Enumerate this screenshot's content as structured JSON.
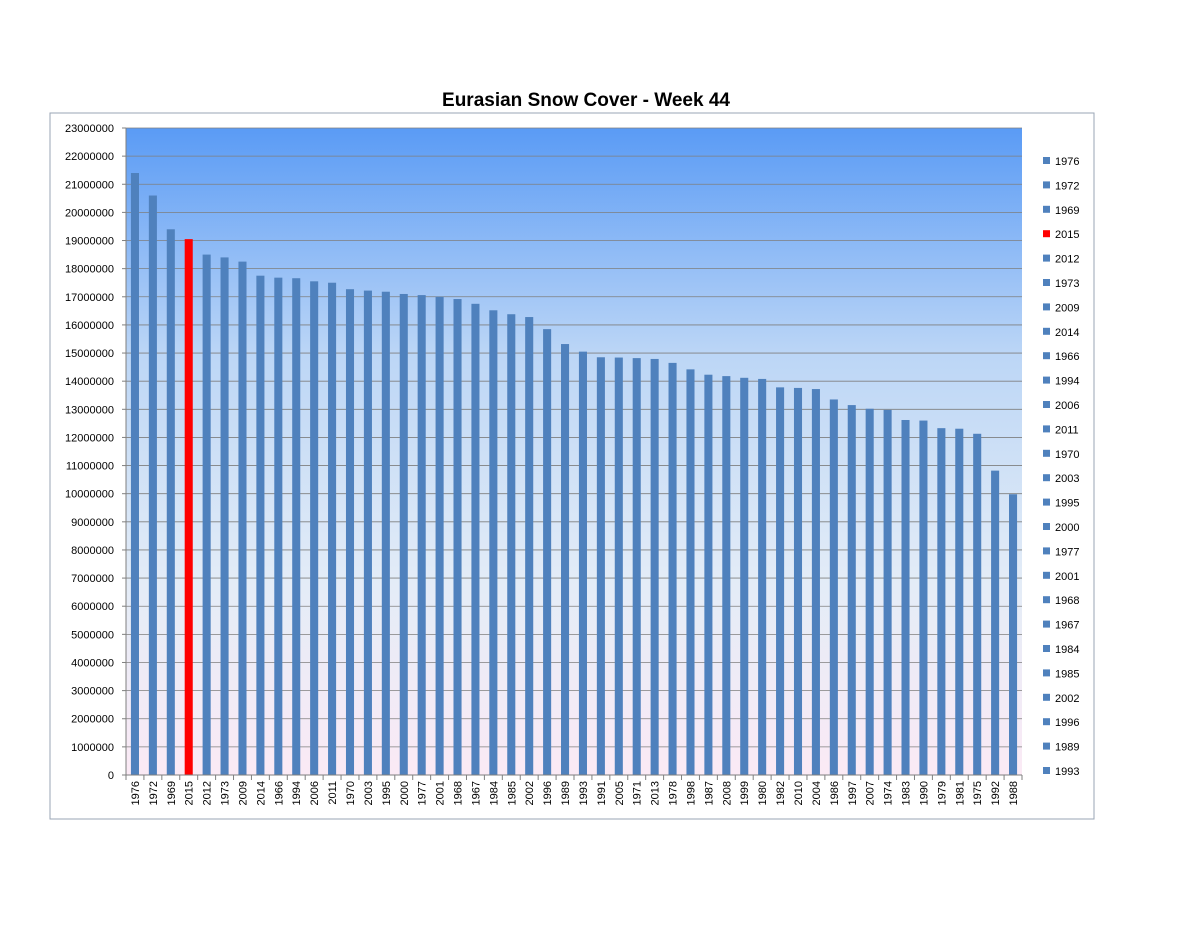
{
  "chart_data": {
    "type": "bar",
    "title": "Eurasian Snow Cover - Week 44",
    "xlabel": "",
    "ylabel": "",
    "ylim": [
      0,
      23000000
    ],
    "y_ticks": [
      0,
      1000000,
      2000000,
      3000000,
      4000000,
      5000000,
      6000000,
      7000000,
      8000000,
      9000000,
      10000000,
      11000000,
      12000000,
      13000000,
      14000000,
      15000000,
      16000000,
      17000000,
      18000000,
      19000000,
      20000000,
      21000000,
      22000000,
      23000000
    ],
    "grid": true,
    "legend_position": "right",
    "categories": [
      "1976",
      "1972",
      "1969",
      "2015",
      "2012",
      "1973",
      "2009",
      "2014",
      "1966",
      "1994",
      "2006",
      "2011",
      "1970",
      "2003",
      "1995",
      "2000",
      "1977",
      "2001",
      "1968",
      "1967",
      "1984",
      "1985",
      "2002",
      "1996",
      "1989",
      "1993",
      "1991",
      "2005",
      "1971",
      "2013",
      "1978",
      "1998",
      "1987",
      "2008",
      "1999",
      "1980",
      "1982",
      "2010",
      "2004",
      "1986",
      "1997",
      "2007",
      "1974",
      "1983",
      "1990",
      "1979",
      "1981",
      "1975",
      "1992",
      "1988"
    ],
    "values": [
      21400000,
      20600000,
      19400000,
      19050000,
      18500000,
      18400000,
      18250000,
      17750000,
      17680000,
      17660000,
      17550000,
      17500000,
      17270000,
      17220000,
      17180000,
      17100000,
      17060000,
      17000000,
      16920000,
      16750000,
      16520000,
      16380000,
      16280000,
      15850000,
      15320000,
      15050000,
      14850000,
      14840000,
      14820000,
      14790000,
      14650000,
      14420000,
      14230000,
      14180000,
      14120000,
      14080000,
      13780000,
      13760000,
      13720000,
      13350000,
      13150000,
      13020000,
      12980000,
      12620000,
      12600000,
      12330000,
      12310000,
      12130000,
      10820000,
      9980000
    ],
    "highlight": "2015",
    "legend": [
      "1976",
      "1972",
      "1969",
      "2015",
      "2012",
      "1973",
      "2009",
      "2014",
      "1966",
      "1994",
      "2006",
      "2011",
      "1970",
      "2003",
      "1995",
      "2000",
      "1977",
      "2001",
      "1968",
      "1967",
      "1984",
      "1985",
      "2002",
      "1996",
      "1989",
      "1993"
    ]
  },
  "colors": {
    "bar": "#4f81bd",
    "highlight": "#ff0000",
    "plot_bg_top": "#5a9bf5",
    "plot_bg_bottom": "#fbeaf5",
    "grid": "#7f7f7f",
    "border": "#9aa5b4"
  }
}
